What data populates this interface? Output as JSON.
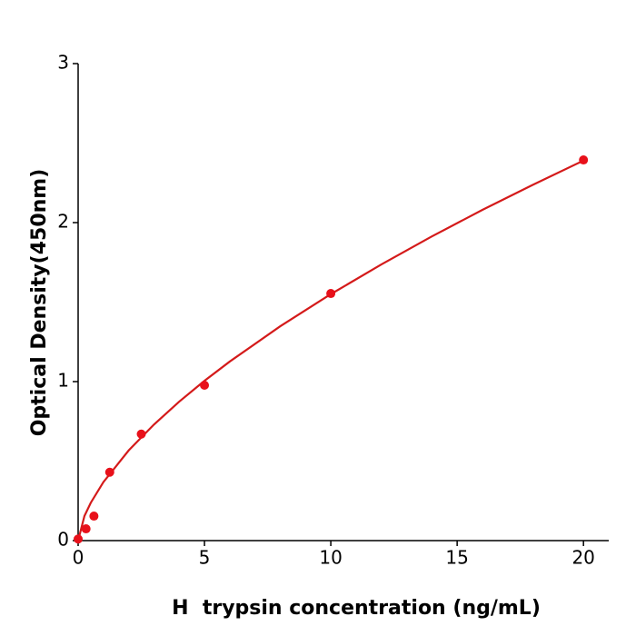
{
  "chart_data": {
    "type": "scatter",
    "x_label": "H  trypsin concentration (ng/mL)",
    "y_label": "Optical Density(450nm)",
    "xlim": [
      0,
      21
    ],
    "ylim": [
      0,
      3
    ],
    "xticks": [
      0,
      5,
      10,
      15,
      20
    ],
    "yticks": [
      0,
      1,
      2,
      3
    ],
    "series": [
      {
        "color": "#e8101a",
        "x": [
          0,
          0.3125,
          0.625,
          1.25,
          2.5,
          5,
          10,
          20
        ],
        "values": [
          0.01,
          0.074,
          0.154,
          0.43,
          0.67,
          0.977,
          1.554,
          2.394
        ]
      }
    ],
    "fit": {
      "color": "#d41a1a",
      "x": [
        0,
        0.25,
        0.5,
        1,
        2,
        3,
        4,
        5,
        6,
        8,
        10,
        12,
        14,
        16,
        18,
        20
      ],
      "values": [
        0,
        0.155,
        0.238,
        0.368,
        0.567,
        0.73,
        0.874,
        1.005,
        1.126,
        1.348,
        1.55,
        1.737,
        1.913,
        2.08,
        2.238,
        2.39
      ]
    }
  }
}
